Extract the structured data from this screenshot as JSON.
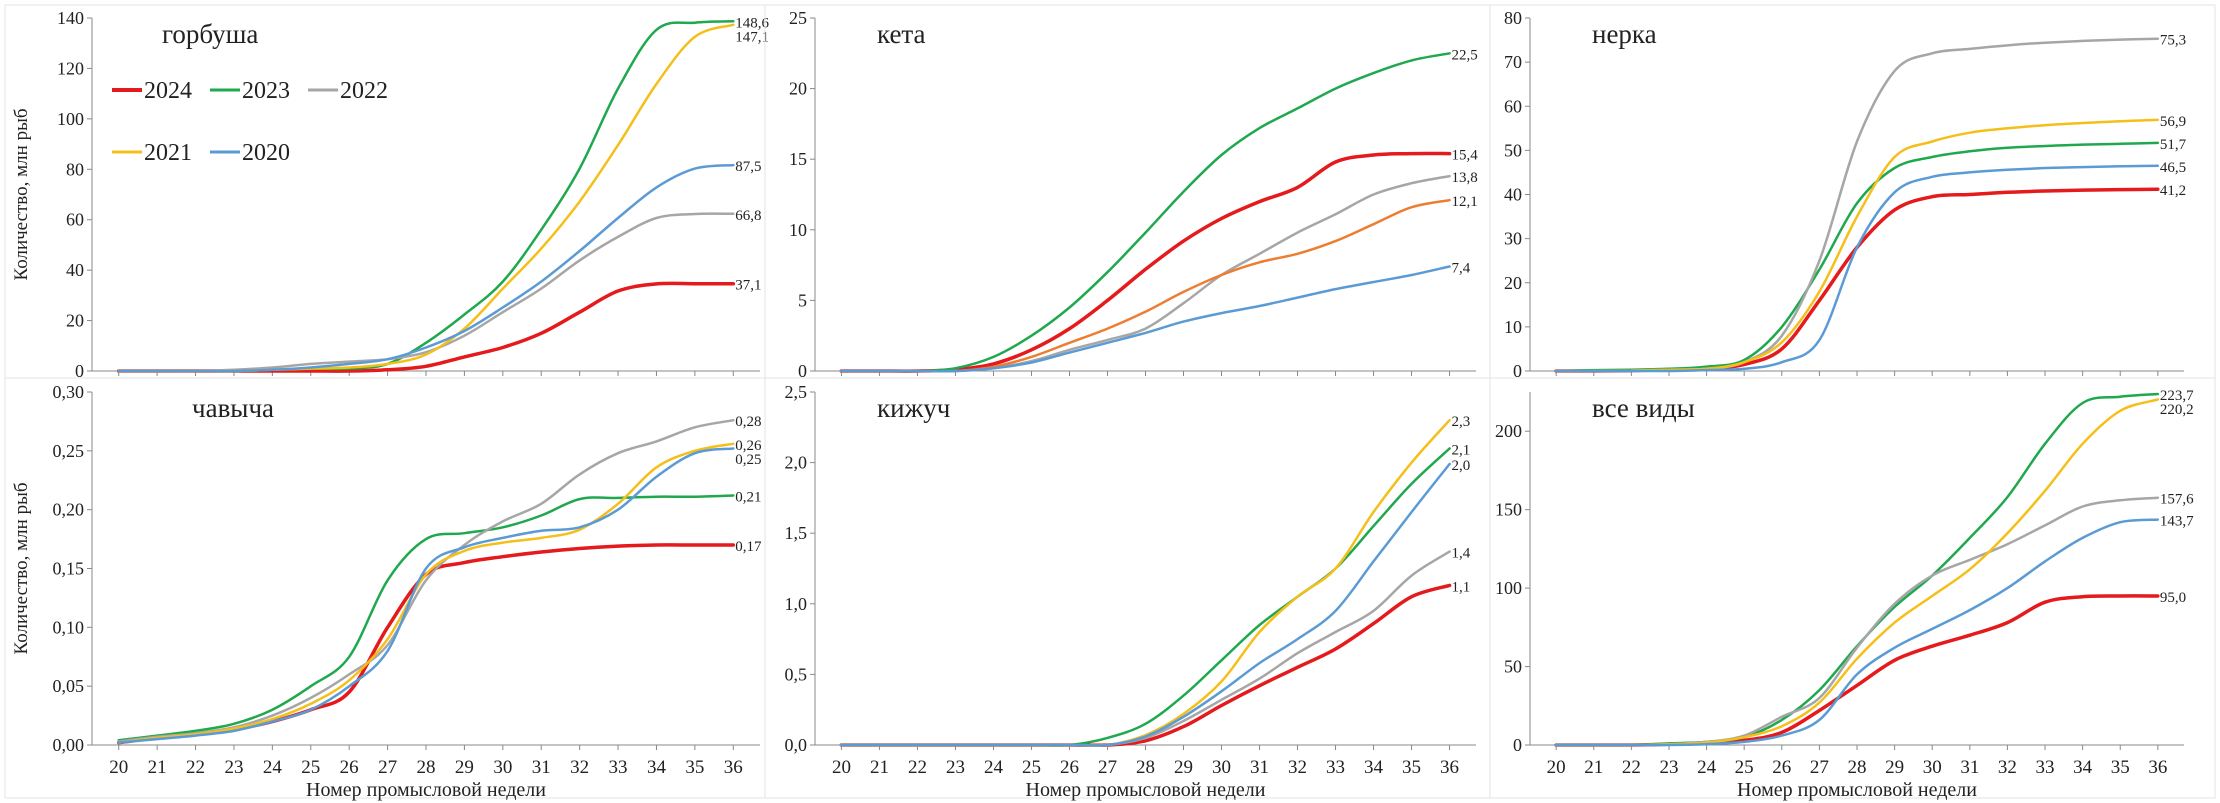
{
  "colors": {
    "2024": "#e41a1c",
    "2023": "#1fa84d",
    "2022": "#a6a6a6",
    "2021": "#f5bf1a",
    "2020": "#5b9bd5",
    "orange": "#ed7d31"
  },
  "legend": [
    {
      "name": "2024",
      "color": "#e41a1c"
    },
    {
      "name": "2023",
      "color": "#1fa84d"
    },
    {
      "name": "2022",
      "color": "#a6a6a6"
    },
    {
      "name": "2021",
      "color": "#f5bf1a"
    },
    {
      "name": "2020",
      "color": "#5b9bd5"
    }
  ],
  "chart_data": [
    {
      "type": "line",
      "title": "горбуша",
      "ylabel": "Количество, млн рыб",
      "xlabel": "",
      "ylim": [
        0,
        150
      ],
      "yticks": [
        "0",
        "20",
        "40",
        "60",
        "80",
        "100",
        "120",
        "140"
      ],
      "x": [
        20,
        21,
        22,
        23,
        24,
        25,
        26,
        27,
        28,
        29,
        30,
        31,
        32,
        33,
        34,
        35,
        36
      ],
      "legend_position": "top-left",
      "series": [
        {
          "name": "2024",
          "color": "#e41a1c",
          "end_label": "37,1",
          "values": [
            0,
            0,
            0,
            0,
            0,
            0,
            0,
            0.5,
            2,
            6,
            10,
            16,
            25,
            34,
            37,
            37.1,
            37.1
          ]
        },
        {
          "name": "2023",
          "color": "#1fa84d",
          "end_label": "148,6",
          "values": [
            0,
            0,
            0,
            0,
            0.5,
            1,
            1,
            3,
            12,
            24,
            38,
            60,
            86,
            120,
            145,
            148,
            148.6
          ]
        },
        {
          "name": "2022",
          "color": "#a6a6a6",
          "end_label": "66,8",
          "values": [
            0,
            0,
            0,
            0.5,
            1.5,
            3,
            4,
            5,
            8,
            15,
            25,
            35,
            47,
            57,
            65,
            66.7,
            66.8
          ]
        },
        {
          "name": "2021",
          "color": "#f5bf1a",
          "end_label": "147,1",
          "values": [
            0,
            0,
            0,
            0,
            0.5,
            1,
            1.5,
            3,
            7,
            18,
            35,
            52,
            72,
            96,
            122,
            142,
            147.1
          ]
        },
        {
          "name": "2020",
          "color": "#5b9bd5",
          "end_label": "87,5",
          "values": [
            0,
            0,
            0,
            0,
            0.5,
            1.5,
            3,
            5,
            10,
            17,
            27,
            38,
            51,
            65,
            78,
            86,
            87.5
          ]
        }
      ]
    },
    {
      "type": "line",
      "title": "кета",
      "ylabel": "",
      "xlabel": "",
      "ylim": [
        0,
        25
      ],
      "yticks": [
        "0",
        "5",
        "10",
        "15",
        "20",
        "25"
      ],
      "x": [
        20,
        21,
        22,
        23,
        24,
        25,
        26,
        27,
        28,
        29,
        30,
        31,
        32,
        33,
        34,
        35,
        36
      ],
      "series": [
        {
          "name": "2024",
          "color": "#e41a1c",
          "end_label": "15,4",
          "values": [
            0,
            0,
            0,
            0.1,
            0.5,
            1.5,
            3,
            5,
            7.2,
            9.2,
            10.8,
            12,
            13,
            14.8,
            15.3,
            15.4,
            15.4
          ]
        },
        {
          "name": "2023",
          "color": "#1fa84d",
          "end_label": "22,5",
          "values": [
            0,
            0,
            0,
            0.2,
            1,
            2.5,
            4.5,
            7,
            9.8,
            12.7,
            15.3,
            17.2,
            18.6,
            20,
            21.1,
            22,
            22.5
          ]
        },
        {
          "name": "2022",
          "color": "#a6a6a6",
          "end_label": "13,8",
          "values": [
            0,
            0,
            0,
            0,
            0.2,
            0.7,
            1.5,
            2.2,
            3,
            4.8,
            6.8,
            8.3,
            9.8,
            11.1,
            12.5,
            13.3,
            13.8
          ]
        },
        {
          "name": "",
          "color": "#ed7d31",
          "end_label": "12,1",
          "values": [
            0,
            0,
            0,
            0,
            0.3,
            1,
            2,
            3,
            4.2,
            5.6,
            6.8,
            7.7,
            8.3,
            9.2,
            10.4,
            11.6,
            12.1
          ]
        },
        {
          "name": "2020",
          "color": "#5b9bd5",
          "end_label": "7,4",
          "values": [
            0,
            0,
            0,
            0,
            0.2,
            0.6,
            1.3,
            2,
            2.7,
            3.5,
            4.1,
            4.6,
            5.2,
            5.8,
            6.3,
            6.8,
            7.4
          ]
        }
      ]
    },
    {
      "type": "line",
      "title": "нерка",
      "ylabel": "",
      "xlabel": "",
      "ylim": [
        0,
        80
      ],
      "yticks": [
        "0",
        "10",
        "20",
        "30",
        "40",
        "50",
        "60",
        "70",
        "80"
      ],
      "x": [
        20,
        21,
        22,
        23,
        24,
        25,
        26,
        27,
        28,
        29,
        30,
        31,
        32,
        33,
        34,
        35,
        36
      ],
      "series": [
        {
          "name": "2024",
          "color": "#e41a1c",
          "end_label": "41,2",
          "values": [
            0,
            0,
            0.1,
            0.3,
            0.5,
            1.5,
            5,
            16,
            28,
            36.5,
            39.5,
            40,
            40.5,
            40.8,
            41,
            41.1,
            41.2
          ]
        },
        {
          "name": "2023",
          "color": "#1fa84d",
          "end_label": "51,7",
          "values": [
            0,
            0.2,
            0.3,
            0.5,
            1,
            2.5,
            10,
            23,
            38,
            46,
            48.5,
            49.8,
            50.6,
            51,
            51.3,
            51.5,
            51.7
          ]
        },
        {
          "name": "2022",
          "color": "#a6a6a6",
          "end_label": "75,3",
          "values": [
            0,
            0,
            0.1,
            0.3,
            0.5,
            2,
            8,
            25,
            52,
            68,
            72,
            73,
            73.8,
            74.4,
            74.8,
            75.1,
            75.3
          ]
        },
        {
          "name": "2021",
          "color": "#f5bf1a",
          "end_label": "56,9",
          "values": [
            0,
            0,
            0.1,
            0.3,
            0.5,
            2,
            6.5,
            18,
            35,
            48.5,
            52,
            54,
            55,
            55.7,
            56.2,
            56.6,
            56.9
          ]
        },
        {
          "name": "2020",
          "color": "#5b9bd5",
          "end_label": "46,5",
          "values": [
            0,
            0,
            0,
            0,
            0.2,
            0.5,
            2,
            7,
            28,
            40.5,
            44,
            45,
            45.6,
            46,
            46.2,
            46.4,
            46.5
          ]
        }
      ]
    },
    {
      "type": "line",
      "title": "чавыча",
      "ylabel": "Количество, млн рыб",
      "xlabel": "Номер промысловой недели",
      "ylim": [
        0,
        0.3
      ],
      "yticks": [
        "0,00",
        "0,05",
        "0,10",
        "0,15",
        "0,20",
        "0,25",
        "0,30"
      ],
      "x": [
        20,
        21,
        22,
        23,
        24,
        25,
        26,
        27,
        28,
        29,
        30,
        31,
        32,
        33,
        34,
        35,
        36
      ],
      "series": [
        {
          "name": "2024",
          "color": "#e41a1c",
          "end_label": "0,17",
          "values": [
            0.002,
            0.006,
            0.009,
            0.013,
            0.02,
            0.03,
            0.045,
            0.1,
            0.145,
            0.155,
            0.16,
            0.164,
            0.167,
            0.169,
            0.17,
            0.17,
            0.17
          ]
        },
        {
          "name": "2023",
          "color": "#1fa84d",
          "end_label": "0,21",
          "values": [
            0.004,
            0.008,
            0.012,
            0.018,
            0.03,
            0.05,
            0.075,
            0.14,
            0.175,
            0.18,
            0.185,
            0.195,
            0.209,
            0.21,
            0.211,
            0.211,
            0.212
          ]
        },
        {
          "name": "2022",
          "color": "#a6a6a6",
          "end_label": "0,28",
          "values": [
            0.003,
            0.007,
            0.01,
            0.015,
            0.025,
            0.04,
            0.06,
            0.085,
            0.14,
            0.17,
            0.19,
            0.205,
            0.23,
            0.248,
            0.258,
            0.27,
            0.276
          ]
        },
        {
          "name": "2021",
          "color": "#f5bf1a",
          "end_label": "0,26",
          "values": [
            0.002,
            0.006,
            0.009,
            0.014,
            0.022,
            0.035,
            0.055,
            0.09,
            0.145,
            0.165,
            0.172,
            0.176,
            0.183,
            0.205,
            0.236,
            0.25,
            0.256
          ]
        },
        {
          "name": "2020",
          "color": "#5b9bd5",
          "end_label": "0,25",
          "values": [
            0.002,
            0.005,
            0.008,
            0.012,
            0.02,
            0.03,
            0.05,
            0.08,
            0.15,
            0.168,
            0.176,
            0.182,
            0.185,
            0.2,
            0.228,
            0.248,
            0.252
          ]
        }
      ]
    },
    {
      "type": "line",
      "title": "кижуч",
      "ylabel": "",
      "xlabel": "Номер промысловой недели",
      "ylim": [
        0,
        2.5
      ],
      "yticks": [
        "0,0",
        "0,5",
        "1,0",
        "1,5",
        "2,0",
        "2,5"
      ],
      "x": [
        20,
        21,
        22,
        23,
        24,
        25,
        26,
        27,
        28,
        29,
        30,
        31,
        32,
        33,
        34,
        35,
        36
      ],
      "series": [
        {
          "name": "2024",
          "color": "#e41a1c",
          "end_label": "1,1",
          "values": [
            0,
            0,
            0,
            0,
            0,
            0,
            0,
            0,
            0.03,
            0.13,
            0.28,
            0.42,
            0.55,
            0.68,
            0.86,
            1.05,
            1.13
          ]
        },
        {
          "name": "2023",
          "color": "#1fa84d",
          "end_label": "2,1",
          "values": [
            0,
            0,
            0,
            0,
            0,
            0,
            0,
            0.05,
            0.15,
            0.35,
            0.6,
            0.85,
            1.05,
            1.25,
            1.55,
            1.85,
            2.1
          ]
        },
        {
          "name": "2022",
          "color": "#a6a6a6",
          "end_label": "1,4",
          "values": [
            0,
            0,
            0,
            0,
            0,
            0,
            0,
            0,
            0.05,
            0.17,
            0.32,
            0.47,
            0.65,
            0.8,
            0.95,
            1.2,
            1.37
          ]
        },
        {
          "name": "2021",
          "color": "#f5bf1a",
          "end_label": "2,3",
          "values": [
            0,
            0,
            0,
            0,
            0,
            0,
            0,
            0,
            0.07,
            0.22,
            0.45,
            0.8,
            1.05,
            1.25,
            1.65,
            2.0,
            2.3
          ]
        },
        {
          "name": "2020",
          "color": "#5b9bd5",
          "end_label": "2,0",
          "values": [
            0,
            0,
            0,
            0,
            0,
            0,
            0,
            0,
            0.06,
            0.2,
            0.38,
            0.58,
            0.75,
            0.95,
            1.3,
            1.65,
            1.99
          ]
        }
      ]
    },
    {
      "type": "line",
      "title": "все виды",
      "ylabel": "",
      "xlabel": "Номер промысловой недели",
      "ylim": [
        0,
        225
      ],
      "yticks": [
        "0",
        "50",
        "100",
        "150",
        "200"
      ],
      "x": [
        20,
        21,
        22,
        23,
        24,
        25,
        26,
        27,
        28,
        29,
        30,
        31,
        32,
        33,
        34,
        35,
        36
      ],
      "series": [
        {
          "name": "2024",
          "color": "#e41a1c",
          "end_label": "95,0",
          "values": [
            0,
            0,
            0,
            0.5,
            1.5,
            3,
            8,
            22,
            38,
            54,
            63,
            70,
            78,
            91,
            94.5,
            95,
            95
          ]
        },
        {
          "name": "2023",
          "color": "#1fa84d",
          "end_label": "223,7",
          "values": [
            0,
            0,
            0,
            1,
            2,
            5,
            16,
            35,
            63,
            88,
            108,
            132,
            158,
            192,
            218,
            222,
            223.7
          ]
        },
        {
          "name": "2022",
          "color": "#a6a6a6",
          "end_label": "157,6",
          "values": [
            0,
            0,
            0,
            0.5,
            2,
            6,
            18,
            30,
            62,
            90,
            108,
            118,
            128,
            140,
            152,
            156,
            157.6
          ]
        },
        {
          "name": "2021",
          "color": "#f5bf1a",
          "end_label": "220,2",
          "values": [
            0,
            0,
            0,
            0.5,
            1.5,
            5,
            12,
            27,
            55,
            78,
            95,
            112,
            135,
            162,
            192,
            213,
            220.2
          ]
        },
        {
          "name": "2020",
          "color": "#5b9bd5",
          "end_label": "143,7",
          "values": [
            0,
            0,
            0,
            0,
            0.5,
            2,
            6,
            16,
            45,
            62,
            74,
            86,
            100,
            117,
            132,
            142,
            143.7
          ]
        }
      ]
    }
  ]
}
